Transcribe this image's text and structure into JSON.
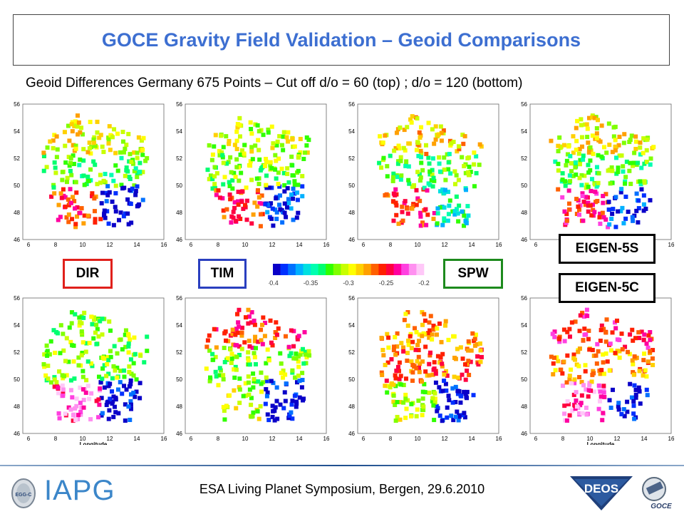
{
  "title": "GOCE Gravity Field Validation – Geoid Comparisons",
  "subtitle": "Geoid Differences Germany 675 Points – Cut off d/o = 60 (top) ; d/o = 120 (bottom)",
  "labels": {
    "dir": "DIR",
    "tim": "TIM",
    "spw": "SPW",
    "eigen5s": "EIGEN-5S",
    "eigen5c": "EIGEN-5C"
  },
  "colors": {
    "title": "#3d6fd1",
    "dir_border": "#e0201b",
    "tim_border": "#2a3fbf",
    "spw_border": "#1d8a1d",
    "eigen_border": "#000000",
    "iapg": "#3b86c9"
  },
  "colorbar": {
    "ticks": [
      "-0.4",
      "-0.35",
      "-0.3",
      "-0.25",
      "-0.2"
    ],
    "colors": [
      "#0a00c8",
      "#0030ff",
      "#0070ff",
      "#00b0ff",
      "#00e0e0",
      "#00ffb0",
      "#00ff70",
      "#30ff00",
      "#80ff00",
      "#c8ff00",
      "#ffff00",
      "#ffd000",
      "#ffa000",
      "#ff6000",
      "#ff2000",
      "#ff0040",
      "#ff00a0",
      "#ff40e0",
      "#ff90f0",
      "#ffc8f8"
    ]
  },
  "panel_axes": {
    "y_ticks": [
      "56",
      "54",
      "52",
      "50",
      "48",
      "46"
    ],
    "x_ticks": [
      "6",
      "8",
      "10",
      "12",
      "14",
      "16"
    ],
    "xlabel": "Longitude"
  },
  "footer": {
    "event": "ESA Living Planet Symposium, Bergen, 29.6.2010",
    "institute": "IAPG",
    "logo_deos": "DEOS",
    "logo_goce": "GOCE",
    "logo_egg": "EGG-C"
  }
}
